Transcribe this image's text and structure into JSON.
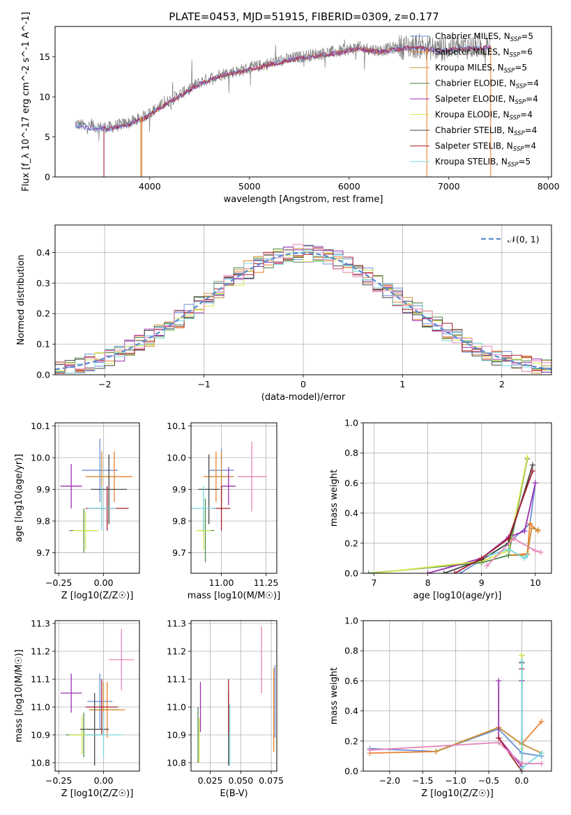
{
  "figure": {
    "title": "PLATE=0453, MJD=51915, FIBERID=0309, z=0.177"
  },
  "legend_colors": {
    "Chabrier MILES": "#6a8fd8",
    "Salpeter MILES": "#ee7f2d",
    "Kroupa MILES": "#c8913a",
    "Chabrier ELODIE": "#4f8a4f",
    "Salpeter ELODIE": "#9b2fae",
    "Kroupa ELODIE": "#d6e84a",
    "Chabrier STELIB": "#444444",
    "Salpeter STELIB": "#a51d2d",
    "Kroupa STELIB": "#74d7e0"
  },
  "chart_data": [
    {
      "id": "spectrum",
      "type": "line",
      "xlabel": "wavelength [Angstrom, rest frame]",
      "ylabel": "Flux [f_λ 10^-17 erg cm^-2 s^-1 A^-1]",
      "xlim": [
        3050,
        8030
      ],
      "ylim": [
        0,
        18.8
      ],
      "xticks": [
        4000,
        5000,
        6000,
        7000,
        8000
      ],
      "yticks": [
        0,
        5,
        10,
        15
      ],
      "legend_position": "top-right",
      "legend": [
        {
          "label": "Chabrier MILES, N",
          "sub": "SSP",
          "val": "=5",
          "color": "#6a8fd8"
        },
        {
          "label": "Salpeter MILES, N",
          "sub": "SSP",
          "val": "=6",
          "color": "#ee7f2d"
        },
        {
          "label": "Kroupa MILES, N",
          "sub": "SSP",
          "val": "=5",
          "color": "#c8913a"
        },
        {
          "label": "Chabrier ELODIE, N",
          "sub": "SSP",
          "val": "=4",
          "color": "#4f8a4f"
        },
        {
          "label": "Salpeter ELODIE, N",
          "sub": "SSP",
          "val": "=4",
          "color": "#9b2fae"
        },
        {
          "label": "Kroupa ELODIE, N",
          "sub": "SSP",
          "val": "=4",
          "color": "#d6e84a"
        },
        {
          "label": "Chabrier STELIB, N",
          "sub": "SSP",
          "val": "=4",
          "color": "#444444"
        },
        {
          "label": "Salpeter STELIB, N",
          "sub": "SSP",
          "val": "=4",
          "color": "#a51d2d"
        },
        {
          "label": "Kroupa STELIB, N",
          "sub": "SSP",
          "val": "=5",
          "color": "#74d7e0"
        }
      ],
      "continuum": [
        [
          3250,
          6.6
        ],
        [
          3400,
          6.3
        ],
        [
          3600,
          6.2
        ],
        [
          3800,
          6.8
        ],
        [
          3950,
          7.6
        ],
        [
          4100,
          8.8
        ],
        [
          4300,
          10.3
        ],
        [
          4500,
          11.8
        ],
        [
          4700,
          12.8
        ],
        [
          4900,
          13.3
        ],
        [
          5100,
          13.9
        ],
        [
          5300,
          14.5
        ],
        [
          5500,
          15.0
        ],
        [
          5700,
          15.4
        ],
        [
          5900,
          15.7
        ],
        [
          6100,
          16.2
        ],
        [
          6300,
          15.8
        ],
        [
          6500,
          16.2
        ],
        [
          6700,
          16.4
        ],
        [
          6900,
          15.9
        ],
        [
          7100,
          16.2
        ],
        [
          7300,
          16.3
        ],
        [
          7420,
          16.4
        ]
      ],
      "model_cutoffs": [
        {
          "color": "#a51d2d",
          "x": 3540
        },
        {
          "color": "#ee7f2d",
          "x": 3920
        },
        {
          "color": "#c8913a",
          "x": 3910
        },
        {
          "color": "#ee7f2d",
          "x": 6780
        },
        {
          "color": "#ee7f2d",
          "x": 7420
        }
      ]
    },
    {
      "id": "residuals",
      "type": "bar",
      "xlabel": "(data-model)/error",
      "ylabel": "Normed distribution",
      "xlim": [
        -2.5,
        2.5
      ],
      "ylim": [
        0,
        0.49
      ],
      "xticks": [
        -2,
        -1,
        0,
        1,
        2
      ],
      "yticks": [
        0.0,
        0.1,
        0.2,
        0.3,
        0.4
      ],
      "grid": true,
      "legend_position": "top-right",
      "legend_label": "𝒩(0, 1)",
      "gaussian_color": "#5b8bd0",
      "bin_width": 0.1
    },
    {
      "id": "age-vs-z",
      "type": "scatter",
      "xlabel": "Z [log10(Z/Z☉)]",
      "ylabel": "age  [log10(age/yr)]",
      "xlim": [
        -0.27,
        0.2
      ],
      "ylim": [
        9.635,
        10.11
      ],
      "xticks": [
        -0.25,
        0.0
      ],
      "yticks": [
        9.7,
        9.8,
        9.9,
        10.0,
        10.1
      ],
      "grid": true,
      "points": [
        {
          "series": "Chabrier MILES",
          "x": -0.02,
          "y": 9.96,
          "xerr": 0.1,
          "yerr": 0.1
        },
        {
          "series": "Salpeter MILES",
          "x": 0.06,
          "y": 9.94,
          "xerr": 0.1,
          "yerr": 0.08
        },
        {
          "series": "Kroupa MILES",
          "x": -0.01,
          "y": 9.94,
          "xerr": 0.09,
          "yerr": 0.08
        },
        {
          "series": "Chabrier ELODIE",
          "x": -0.11,
          "y": 9.77,
          "xerr": 0.08,
          "yerr": 0.07
        },
        {
          "series": "Salpeter ELODIE",
          "x": -0.18,
          "y": 9.91,
          "xerr": 0.06,
          "yerr": 0.07
        },
        {
          "series": "Kroupa ELODIE",
          "x": -0.1,
          "y": 9.77,
          "xerr": 0.07,
          "yerr": 0.06
        },
        {
          "series": "Chabrier STELIB",
          "x": 0.03,
          "y": 9.9,
          "xerr": 0.1,
          "yerr": 0.11
        },
        {
          "series": "Salpeter STELIB",
          "x": 0.02,
          "y": 9.84,
          "xerr": 0.12,
          "yerr": 0.07
        },
        {
          "series": "Kroupa STELIB",
          "x": -0.01,
          "y": 9.84,
          "xerr": 0.08,
          "yerr": 0.07
        }
      ]
    },
    {
      "id": "age-vs-mass",
      "type": "scatter",
      "xlabel": "mass [log10(M/M☉)]",
      "ylabel": "",
      "xlim": [
        10.83,
        11.31
      ],
      "ylim": [
        9.635,
        10.11
      ],
      "xticks": [
        11.0,
        11.25
      ],
      "yticks": [
        9.7,
        9.8,
        9.9,
        10.0,
        10.1
      ],
      "grid": true,
      "points": [
        {
          "series": "Chabrier MILES",
          "x": 11.0,
          "y": 9.96,
          "xerr": 0.07,
          "yerr": 0.07
        },
        {
          "series": "Salpeter MILES",
          "x": 10.97,
          "y": 9.94,
          "xerr": 0.07,
          "yerr": 0.08
        },
        {
          "series": "Kroupa MILES",
          "x": 11.0,
          "y": 9.94,
          "xerr": 0.07,
          "yerr": 0.08
        },
        {
          "series": "Chabrier ELODIE",
          "x": 10.91,
          "y": 9.77,
          "xerr": 0.05,
          "yerr": 0.1
        },
        {
          "series": "Salpeter ELODIE",
          "x": 11.04,
          "y": 9.91,
          "xerr": 0.04,
          "yerr": 0.06
        },
        {
          "series": "Kroupa ELODIE",
          "x": 10.9,
          "y": 9.77,
          "xerr": 0.04,
          "yerr": 0.06
        },
        {
          "series": "Chabrier STELIB",
          "x": 10.93,
          "y": 9.9,
          "xerr": 0.06,
          "yerr": 0.11
        },
        {
          "series": "Salpeter STELIB",
          "x": 11.0,
          "y": 9.84,
          "xerr": 0.05,
          "yerr": 0.07
        },
        {
          "series": "Kroupa STELIB",
          "x": 10.9,
          "y": 9.84,
          "xerr": 0.07,
          "yerr": 0.07
        },
        {
          "series": "Kroupa MILES alt",
          "x": 11.17,
          "y": 9.94,
          "xerr": 0.08,
          "yerr": 0.11
        }
      ]
    },
    {
      "id": "weight-vs-age",
      "type": "line",
      "xlabel": "age  [log10(age/yr)]",
      "ylabel": "mass weight",
      "xlim": [
        6.8,
        10.3
      ],
      "ylim": [
        0,
        1
      ],
      "xticks": [
        7,
        8,
        9,
        10
      ],
      "yticks": [
        0.0,
        0.2,
        0.4,
        0.6,
        0.8,
        1.0
      ],
      "grid": true,
      "series": [
        {
          "name": "Chabrier MILES",
          "points": [
            [
              8.6,
              0.0
            ],
            [
              9.5,
              0.2
            ],
            [
              9.9,
              0.33
            ],
            [
              10.0,
              0.6
            ]
          ]
        },
        {
          "name": "Salpeter MILES",
          "points": [
            [
              9.5,
              0.12
            ],
            [
              9.85,
              0.13
            ],
            [
              9.9,
              0.33
            ],
            [
              10.05,
              0.28
            ]
          ]
        },
        {
          "name": "Kroupa MILES",
          "points": [
            [
              9.5,
              0.12
            ],
            [
              9.85,
              0.12
            ],
            [
              9.93,
              0.3
            ],
            [
              10.05,
              0.29
            ]
          ]
        },
        {
          "name": "Chabrier ELODIE",
          "points": [
            [
              6.9,
              0.0
            ],
            [
              9.0,
              0.07
            ],
            [
              9.5,
              0.12
            ],
            [
              9.85,
              0.76
            ]
          ]
        },
        {
          "name": "Salpeter ELODIE",
          "points": [
            [
              8.0,
              0.0
            ],
            [
              9.0,
              0.1
            ],
            [
              9.5,
              0.24
            ],
            [
              9.8,
              0.28
            ],
            [
              10.0,
              0.6
            ]
          ]
        },
        {
          "name": "Kroupa ELODIE",
          "points": [
            [
              7.0,
              0.0
            ],
            [
              9.0,
              0.08
            ],
            [
              9.5,
              0.15
            ],
            [
              9.85,
              0.77
            ]
          ]
        },
        {
          "name": "Chabrier STELIB",
          "points": [
            [
              8.3,
              0.0
            ],
            [
              9.0,
              0.09
            ],
            [
              9.5,
              0.2
            ],
            [
              9.95,
              0.72
            ]
          ]
        },
        {
          "name": "Salpeter STELIB",
          "points": [
            [
              8.5,
              0.0
            ],
            [
              9.0,
              0.1
            ],
            [
              9.5,
              0.23
            ],
            [
              9.95,
              0.68
            ]
          ]
        },
        {
          "name": "Kroupa STELIB",
          "points": [
            [
              9.15,
              0.12
            ],
            [
              9.5,
              0.16
            ],
            [
              9.8,
              0.1
            ],
            [
              9.85,
              0.12
            ]
          ]
        },
        {
          "name": "Pink",
          "points": [
            [
              9.1,
              0.05
            ],
            [
              9.6,
              0.23
            ],
            [
              10.0,
              0.15
            ],
            [
              10.1,
              0.14
            ]
          ]
        }
      ]
    },
    {
      "id": "mass-vs-z",
      "type": "scatter",
      "xlabel": "Z [log10(Z/Z☉)]",
      "ylabel": "mass [log10(M/M☉)]",
      "xlim": [
        -0.27,
        0.2
      ],
      "ylim": [
        10.77,
        11.31
      ],
      "xticks": [
        -0.25,
        0.0
      ],
      "yticks": [
        10.8,
        10.9,
        11.0,
        11.1,
        11.2,
        11.3
      ],
      "grid": true,
      "points": [
        {
          "series": "Chabrier MILES",
          "x": -0.02,
          "y": 11.02,
          "xerr": 0.07,
          "yerr": 0.1
        },
        {
          "series": "Salpeter MILES",
          "x": 0.02,
          "y": 10.99,
          "xerr": 0.1,
          "yerr": 0.1
        },
        {
          "series": "Kroupa MILES",
          "x": 0.0,
          "y": 10.99,
          "xerr": 0.08,
          "yerr": 0.1
        },
        {
          "series": "Chabrier ELODIE",
          "x": -0.11,
          "y": 10.9,
          "xerr": 0.1,
          "yerr": 0.08
        },
        {
          "series": "Salpeter ELODIE",
          "x": -0.18,
          "y": 11.05,
          "xerr": 0.06,
          "yerr": 0.07
        },
        {
          "series": "Kroupa ELODIE",
          "x": -0.12,
          "y": 10.9,
          "xerr": 0.07,
          "yerr": 0.07
        },
        {
          "series": "Chabrier STELIB",
          "x": -0.05,
          "y": 10.92,
          "xerr": 0.08,
          "yerr": 0.13
        },
        {
          "series": "Salpeter STELIB",
          "x": -0.01,
          "y": 11.0,
          "xerr": 0.09,
          "yerr": 0.1
        },
        {
          "series": "Kroupa STELIB",
          "x": 0.0,
          "y": 10.9,
          "xerr": 0.1,
          "yerr": 0.08
        },
        {
          "series": "Pink",
          "x": 0.1,
          "y": 11.17,
          "xerr": 0.07,
          "yerr": 0.11
        }
      ]
    },
    {
      "id": "mass-vs-ebv",
      "type": "scatter",
      "xlabel": "E(B-V)",
      "ylabel": "",
      "xlim": [
        0.0093,
        0.0795
      ],
      "ylim": [
        10.77,
        11.31
      ],
      "xticks": [
        0.025,
        0.05,
        0.075
      ],
      "yticks": [
        10.8,
        10.9,
        11.0,
        11.1,
        11.2,
        11.3
      ],
      "grid": true,
      "points": [
        {
          "series": "Chabrier MILES",
          "x": 0.078,
          "y": 11.02,
          "xerr": 0.0,
          "yerr": 0.13
        },
        {
          "series": "Salpeter MILES",
          "x": 0.077,
          "y": 10.99,
          "xerr": 0.0,
          "yerr": 0.15
        },
        {
          "series": "Chabrier ELODIE",
          "x": 0.015,
          "y": 10.9,
          "xerr": 0.0,
          "yerr": 0.1
        },
        {
          "series": "Salpeter ELODIE",
          "x": 0.017,
          "y": 11.0,
          "xerr": 0.0,
          "yerr": 0.09
        },
        {
          "series": "Kroupa ELODIE",
          "x": 0.016,
          "y": 10.88,
          "xerr": 0.0,
          "yerr": 0.08
        },
        {
          "series": "Chabrier STELIB",
          "x": 0.04,
          "y": 10.92,
          "xerr": 0.0,
          "yerr": 0.13
        },
        {
          "series": "Salpeter STELIB",
          "x": 0.04,
          "y": 11.0,
          "xerr": 0.0,
          "yerr": 0.1
        },
        {
          "series": "Kroupa STELIB",
          "x": 0.041,
          "y": 10.9,
          "xerr": 0.0,
          "yerr": 0.11
        },
        {
          "series": "Pink",
          "x": 0.067,
          "y": 11.17,
          "xerr": 0.0,
          "yerr": 0.12
        }
      ]
    },
    {
      "id": "weight-vs-z",
      "type": "line",
      "xlabel": "Z [log10(Z/Z☉)]",
      "ylabel": "mass weight",
      "xlim": [
        -2.4,
        0.45
      ],
      "ylim": [
        0,
        1
      ],
      "xticks": [
        -2.0,
        -1.5,
        -1.0,
        -0.5,
        0.0
      ],
      "yticks": [
        0.0,
        0.2,
        0.4,
        0.6,
        0.8,
        1.0
      ],
      "grid": true,
      "series": [
        {
          "name": "Chabrier MILES",
          "points": [
            [
              -2.3,
              0.15
            ],
            [
              -1.3,
              0.13
            ],
            [
              -0.35,
              0.28
            ],
            [
              0.0,
              0.12
            ],
            [
              0.3,
              0.1
            ]
          ]
        },
        {
          "name": "Salpeter MILES",
          "points": [
            [
              -2.3,
              0.12
            ],
            [
              -1.3,
              0.13
            ],
            [
              -0.35,
              0.29
            ],
            [
              0.0,
              0.18
            ],
            [
              0.3,
              0.33
            ]
          ]
        },
        {
          "name": "Kroupa MILES",
          "points": [
            [
              -1.3,
              0.13
            ],
            [
              -0.35,
              0.29
            ],
            [
              0.0,
              0.18
            ],
            [
              0.3,
              0.12
            ]
          ]
        },
        {
          "name": "Chabrier ELODIE",
          "points": [
            [
              0.0,
              0.77
            ],
            [
              0.0,
              0.6
            ]
          ]
        },
        {
          "name": "Salpeter ELODIE",
          "points": [
            [
              -0.35,
              0.6
            ],
            [
              -0.35,
              0.22
            ],
            [
              0.0,
              0.03
            ],
            [
              0.0,
              0.6
            ]
          ]
        },
        {
          "name": "Kroupa ELODIE",
          "points": [
            [
              0.0,
              0.77
            ],
            [
              0.0,
              0.15
            ]
          ]
        },
        {
          "name": "Chabrier STELIB",
          "points": [
            [
              0.0,
              0.72
            ],
            [
              0.0,
              0.0
            ]
          ]
        },
        {
          "name": "Salpeter STELIB",
          "points": [
            [
              -0.35,
              0.22
            ],
            [
              0.0,
              0.0
            ],
            [
              0.0,
              0.68
            ]
          ]
        },
        {
          "name": "Kroupa STELIB",
          "points": [
            [
              0.0,
              0.73
            ],
            [
              0.0,
              0.02
            ],
            [
              0.3,
              0.12
            ]
          ]
        },
        {
          "name": "Pink",
          "points": [
            [
              -2.3,
              0.14
            ],
            [
              -0.35,
              0.19
            ],
            [
              0.0,
              0.05
            ],
            [
              0.3,
              0.05
            ]
          ]
        }
      ]
    }
  ],
  "extra_colors": {
    "Pink": "#e584b8",
    "Kroupa MILES alt": "#e584b8"
  }
}
